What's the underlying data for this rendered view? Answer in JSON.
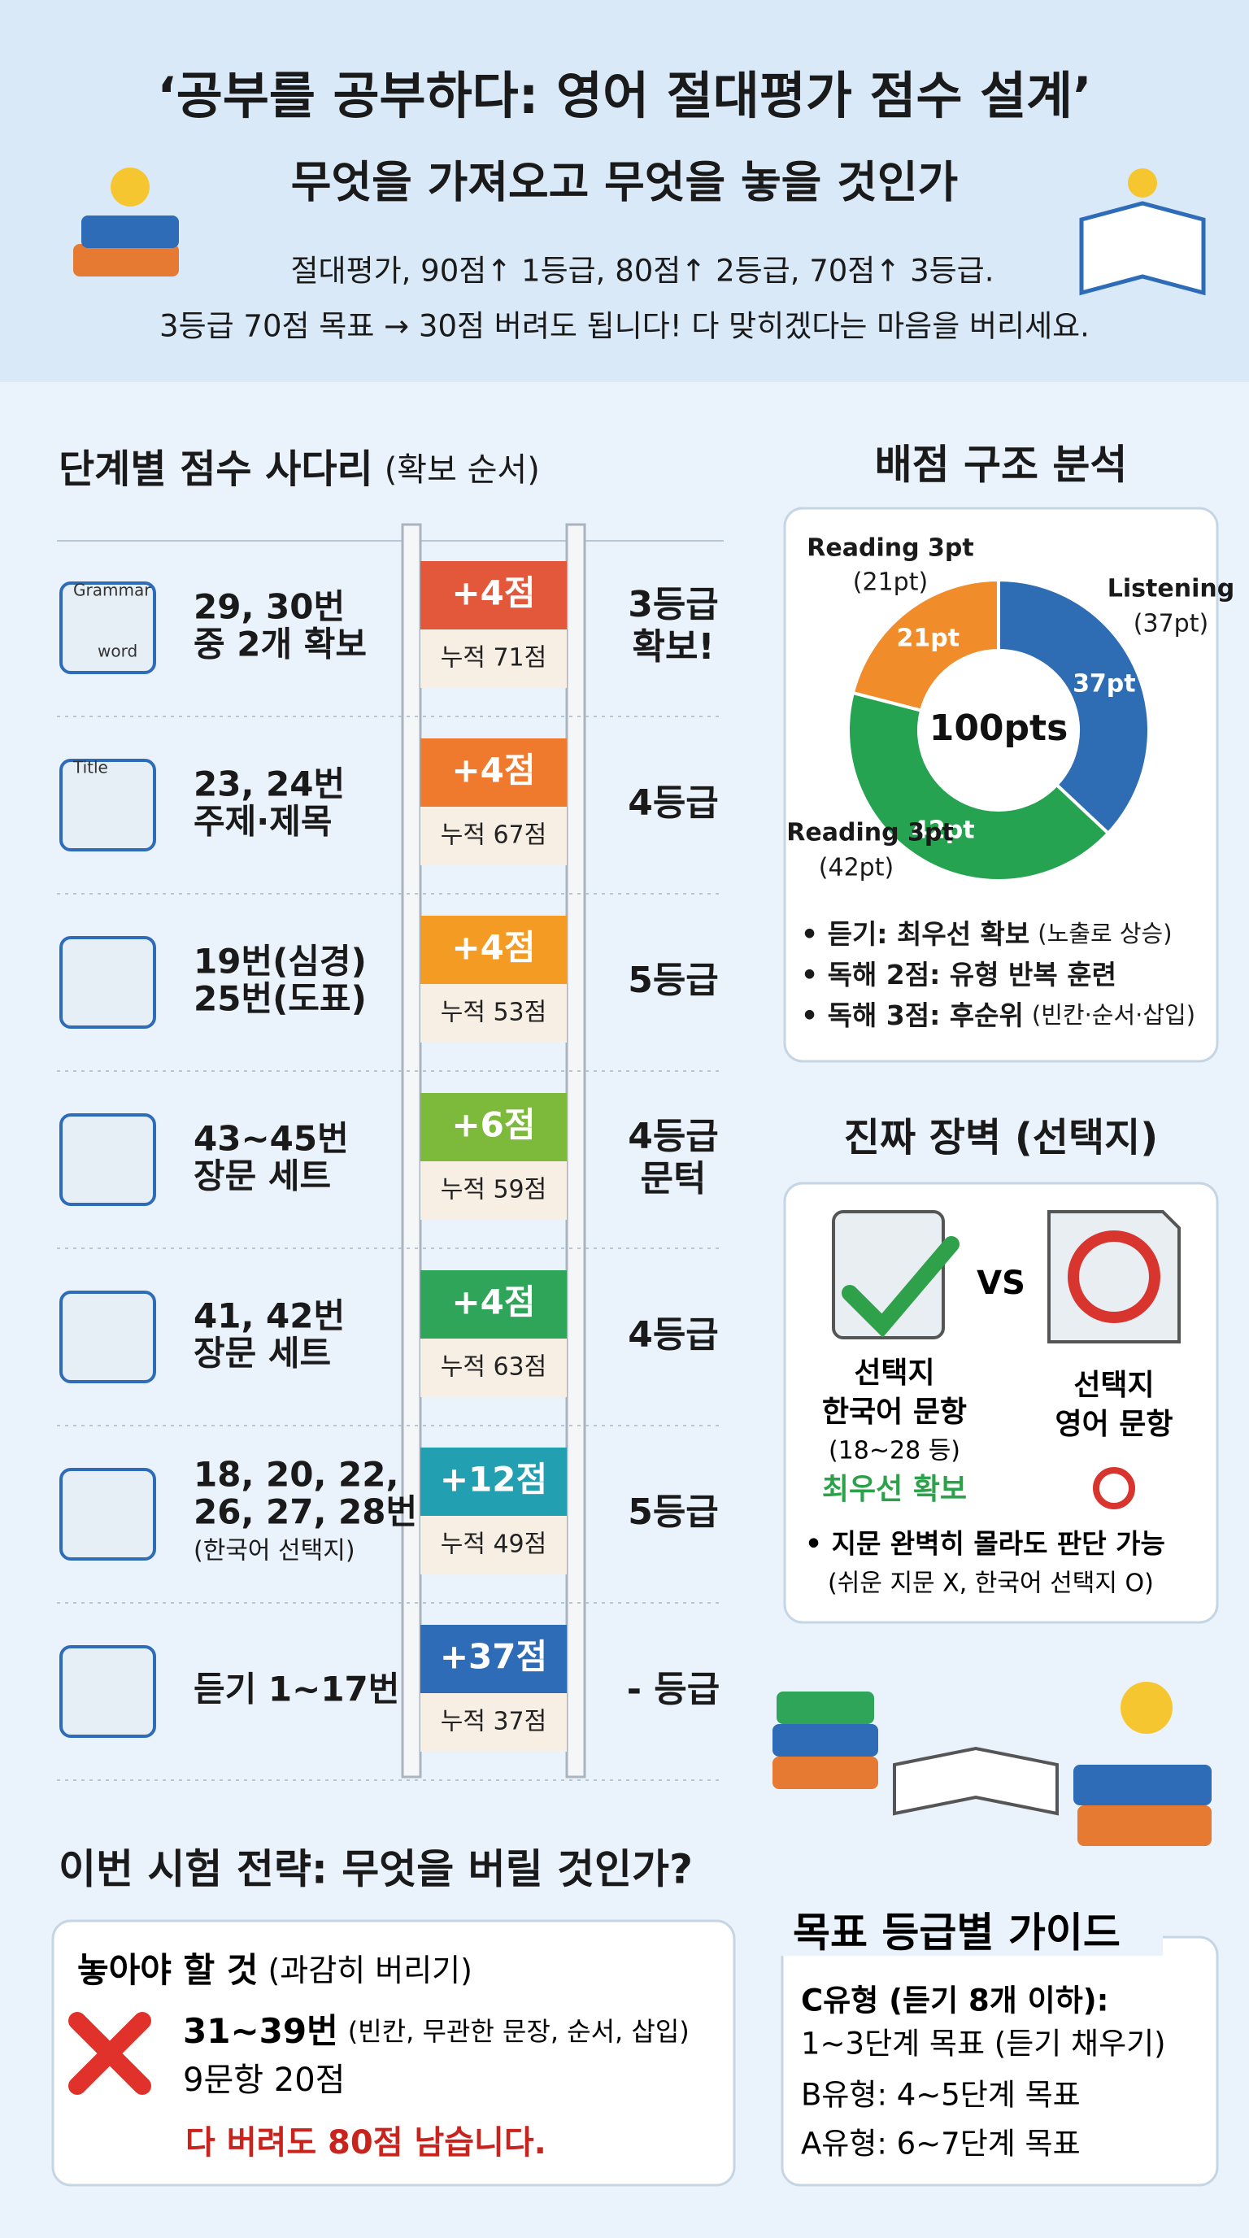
{
  "header": {
    "title": "‘공부를 공부하다: 영어 절대평가 점수 설계’",
    "subtitle": "무엇을 가져오고 무엇을 놓을 것인가",
    "lines": [
      "절대평가, 90점↑ 1등급, 80점↑ 2등급, 70점↑ 3등급.",
      "3등급 70점 목표 → 30점 버려도 됩니다! 다 맞히겠다는 마음을 버리세요."
    ]
  },
  "ladder": {
    "title": "단계별 점수 사다리",
    "title_note": "(확보 순서)",
    "steps": [
      {
        "icon_texts": [
          "Grammar",
          "word"
        ],
        "label": [
          "29, 30번",
          "중 2개 확보"
        ],
        "gain": "+4점",
        "total": "누적 71점",
        "grade": [
          "3등급",
          "확보!"
        ],
        "color": "#e3573a"
      },
      {
        "icon_texts": [
          "Title"
        ],
        "label": [
          "23, 24번",
          "주제·제목"
        ],
        "gain": "+4점",
        "total": "누적 67점",
        "grade": [
          "4등급"
        ],
        "color": "#ef7a2d"
      },
      {
        "icon_texts": [],
        "label": [
          "19번(심경)",
          "25번(도표)"
        ],
        "gain": "+4점",
        "total": "누적 53점",
        "grade": [
          "5등급"
        ],
        "color": "#f39b22"
      },
      {
        "icon_texts": [],
        "label": [
          "43~45번",
          "장문 세트"
        ],
        "gain": "+6점",
        "total": "누적 59점",
        "grade": [
          "4등급",
          "문턱"
        ],
        "color": "#7db93b"
      },
      {
        "icon_texts": [],
        "label": [
          "41, 42번",
          "장문 세트"
        ],
        "gain": "+4점",
        "total": "누적 63점",
        "grade": [
          "4등급"
        ],
        "color": "#2fa559"
      },
      {
        "icon_texts": [],
        "label": [
          "18, 20, 22,",
          "26, 27, 28번",
          "(한국어 선택지)"
        ],
        "gain": "+12점",
        "total": "누적 49점",
        "grade": [
          "5등급"
        ],
        "color": "#22a0b1"
      },
      {
        "icon_texts": [],
        "label": [
          "듣기 1~17번"
        ],
        "gain": "+37점",
        "total": "누적 37점",
        "grade": [
          "- 등급"
        ],
        "color": "#2f6cb8"
      }
    ]
  },
  "score_structure": {
    "title": "배점 구조 분석",
    "chart": {
      "type": "pie",
      "center_label": "100pts",
      "slices": [
        {
          "name": "Listening",
          "value": 37,
          "value_label": "37pt",
          "outer_label": "(37pt)",
          "color": "#2e6db4"
        },
        {
          "name": "Reading 3pt",
          "value": 42,
          "value_label": "42pt",
          "outer_label": "(42pt)",
          "color": "#25a351"
        },
        {
          "name": "Reading 3pt",
          "value": 21,
          "value_label": "21pt",
          "outer_label": "(21pt)",
          "color": "#f18c2a"
        }
      ]
    },
    "bullets": [
      {
        "bold": "• 듣기: 최우선 확보",
        "note": "(노출로 상승)"
      },
      {
        "bold": "• 독해 2점: 유형 반복 훈련",
        "note": ""
      },
      {
        "bold": "• 독해 3점: 후순위",
        "note": "(빈칸·순서·삽입)"
      }
    ]
  },
  "barrier": {
    "title": "진짜 장벽 (선택지)",
    "vs": "VS",
    "left": [
      "선택지",
      "한국어 문항",
      "(18~28 등)",
      "최우선 확보"
    ],
    "right": [
      "선택지",
      "영어 문항"
    ],
    "bullet": "• 지문 완벽히 몰라도 판단 가능",
    "bullet_note": "(쉬운 지문 X, 한국어 선택지 O)"
  },
  "strategy": {
    "title": "이번 시험 전략: 무엇을 버릴 것인가?",
    "box_title": "놓아야 할 것",
    "box_note": "(과감히 버리기)",
    "item": "31~39번",
    "item_note": "(빈칸, 무관한 문장, 순서, 삽입)",
    "count": "9문항 20점",
    "conclusion": "다 버려도 80점 남습니다."
  },
  "guide": {
    "title": "목표 등급별 가이드",
    "lines": [
      "C유형 (듣기 8개 이하):",
      "1~3단계 목표 (듣기 채우기)",
      "B유형: 4~5단계 목표",
      "A유형: 6~7단계 목표"
    ]
  }
}
